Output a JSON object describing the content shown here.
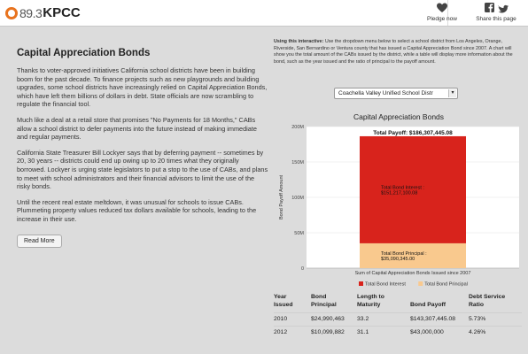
{
  "header": {
    "logo_freq": "89.3",
    "logo_name": "KPCC",
    "pledge_label": "Pledge now",
    "share_label": "Share this page"
  },
  "article": {
    "title": "Capital Appreciation Bonds",
    "paragraphs": [
      "Thanks to voter-approved initiatives California school districts have been in building boom for the past decade. To finance projects such as new playgrounds and building upgrades, some school districts have increasingly relied on Capital Appreciation Bonds, which have left them billions of dollars in debt. State officials are now scrambling to regulate the financial tool.",
      "Much like a deal at a retail store that promises \"No Payments for 18 Months,\" CABs allow a school district to defer payments into the future instead of making immediate and regular payments.",
      "California State Treasurer Bill Lockyer says that by deferring payment -- sometimes by 20, 30 years -- districts could end up owing up to 20 times what they originally borrowed. Lockyer is urging state legislators to put a stop to the use of CABs, and plans to meet with school administrators and their financial advisors to limit the use of the risky bonds.",
      "Until the recent real estate meltdown, it was unusual for schools to issue CABs. Plummeting property values reduced tax dollars available for schools, leading to the increase in their use."
    ],
    "read_more_label": "Read More"
  },
  "interactive": {
    "instructions_heading": "Using this interactive:",
    "instructions_text": "Use the dropdown menu below to select a school district from Los Angeles, Orange, Riverside, San Bernardino or Ventura county that has issued a Capital Appreciation Bond since 2007. A chart will show you the total amount of the CABs issued by the district, while a table will display more information about the bond, such as the year issued and the ratio of principal to the payoff amount.",
    "selected_district": "Coachella Valley Unified School Distr"
  },
  "chart_data": {
    "type": "bar",
    "title": "Capital Appreciation Bonds",
    "ylabel": "Bond Payoff Amount",
    "xlabel": "Sum of Capital Appreciation Bonds Issued since 2007",
    "ylim": [
      0,
      200000000
    ],
    "yticks": [
      0,
      50000000,
      100000000,
      150000000,
      200000000
    ],
    "ytick_labels": [
      "0",
      "50M",
      "100M",
      "150M",
      "200M"
    ],
    "stacked": true,
    "categories": [
      "Sum of Capital Appreciation Bonds Issued since 2007"
    ],
    "series": [
      {
        "name": "Total Bond Principal",
        "values": [
          35090345
        ],
        "color": "#f9c98e",
        "label_name": "Total Bond Principal :",
        "label_value": "$35,090,345.00"
      },
      {
        "name": "Total Bond Interest",
        "values": [
          151217100.08
        ],
        "color": "#d8231c",
        "label_name": "Total Bond Interest :",
        "label_value": "$151,217,100.08"
      }
    ],
    "total_label": "Total Payoff: $186,307,445.08",
    "legend": [
      "Total Bond Interest",
      "Total Bond Principal"
    ],
    "legend_placement": "bottom",
    "grid": true
  },
  "table": {
    "headers": [
      [
        "Year",
        "Issued"
      ],
      [
        "Bond",
        "Principal"
      ],
      [
        "Length to",
        "Maturity"
      ],
      [
        "Bond Payoff",
        ""
      ],
      [
        "Debt Service",
        "Ratio"
      ]
    ],
    "rows": [
      [
        "2010",
        "$24,990,463",
        "33.2",
        "$143,307,445.08",
        "5.73%"
      ],
      [
        "2012",
        "$10,099,882",
        "31.1",
        "$43,000,000",
        "4.26%"
      ]
    ]
  }
}
